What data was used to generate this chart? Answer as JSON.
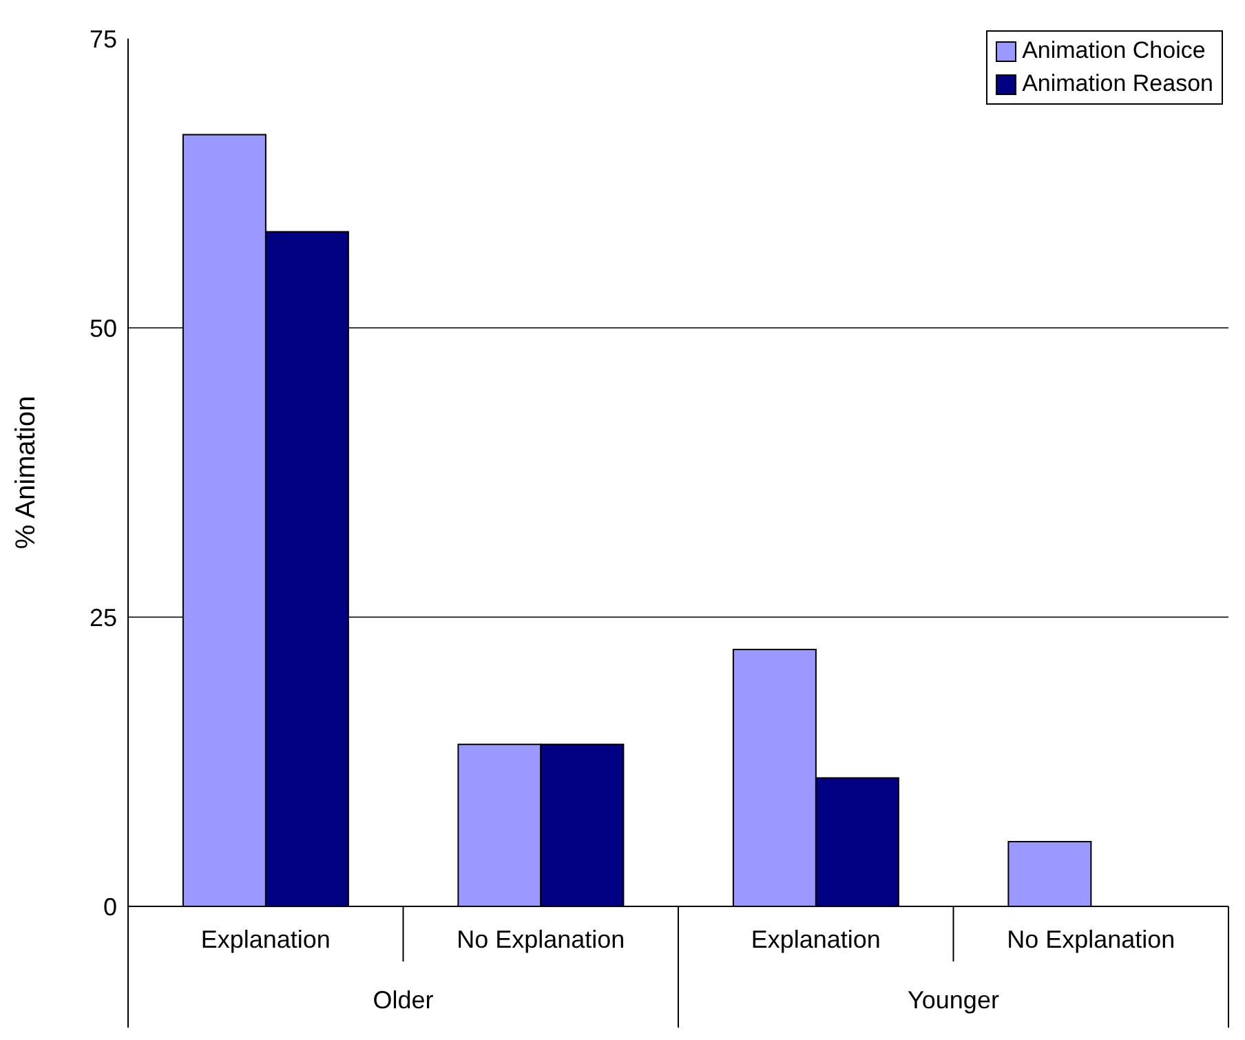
{
  "chart_data": {
    "type": "bar",
    "ylabel": "% Animation",
    "categories": [
      "Explanation",
      "No Explanation",
      "Explanation",
      "No Explanation"
    ],
    "series": [
      {
        "name": "Animation Choice",
        "color": "#9999ff",
        "values": [
          66.7,
          14,
          22.2,
          5.6
        ]
      },
      {
        "name": "Animation Reason",
        "color": "#000080",
        "values": [
          58.3,
          14,
          11.1,
          0
        ]
      }
    ],
    "annotations": [
      "Older",
      "Younger"
    ],
    "ylim": [
      0,
      75
    ],
    "yticks": [
      0,
      25,
      50,
      75
    ],
    "grid": "y",
    "legend": "top right"
  }
}
